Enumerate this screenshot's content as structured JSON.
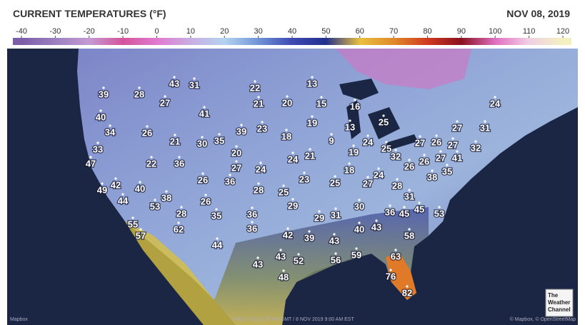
{
  "header": {
    "title": "CURRENT TEMPERATURES (°F)",
    "date": "NOV 08, 2019"
  },
  "legend": {
    "ticks": [
      -40,
      -30,
      -20,
      -10,
      0,
      10,
      20,
      30,
      40,
      50,
      60,
      70,
      80,
      90,
      100,
      110,
      120
    ],
    "colors": [
      "#7b5ea7",
      "#9c7fc0",
      "#c59ad2",
      "#d4549c",
      "#e07ad0",
      "#c9aee2",
      "#b4d3f0",
      "#7094d8",
      "#3d4ab2",
      "#23308e",
      "#e8c040",
      "#e08a2a",
      "#d03a20",
      "#8a1020",
      "#e070c0",
      "#f0d0e4",
      "#f4f0c0"
    ]
  },
  "map": {
    "temperatures": [
      39,
      28,
      43,
      31,
      27,
      22,
      13,
      21,
      20,
      15,
      16,
      24,
      40,
      41,
      19,
      25,
      34,
      26,
      39,
      23,
      18,
      13,
      27,
      31,
      33,
      21,
      30,
      35,
      9,
      24,
      27,
      26,
      27,
      47,
      22,
      36,
      20,
      24,
      21,
      19,
      25,
      32,
      26,
      27,
      41,
      32,
      27,
      24,
      18,
      26,
      35,
      38,
      49,
      42,
      40,
      26,
      36,
      23,
      25,
      27,
      24,
      28,
      44,
      38,
      28,
      25,
      31,
      53,
      26,
      29,
      30,
      36,
      45,
      45,
      53,
      28,
      35,
      36,
      29,
      31,
      55,
      62,
      36,
      40,
      43,
      58,
      57,
      42,
      39,
      43,
      44,
      43,
      52,
      56,
      59,
      63,
      43,
      48,
      76,
      82
    ]
  },
  "footer": {
    "left": "Mapbox",
    "timestamp": "8 NOV 2019 2:00 PM GMT / 8 NOV 2019 9:00 AM EST",
    "right": "© Mapbox, © OpenStreetMap",
    "logo": [
      "The",
      "Weather",
      "Channel"
    ]
  }
}
